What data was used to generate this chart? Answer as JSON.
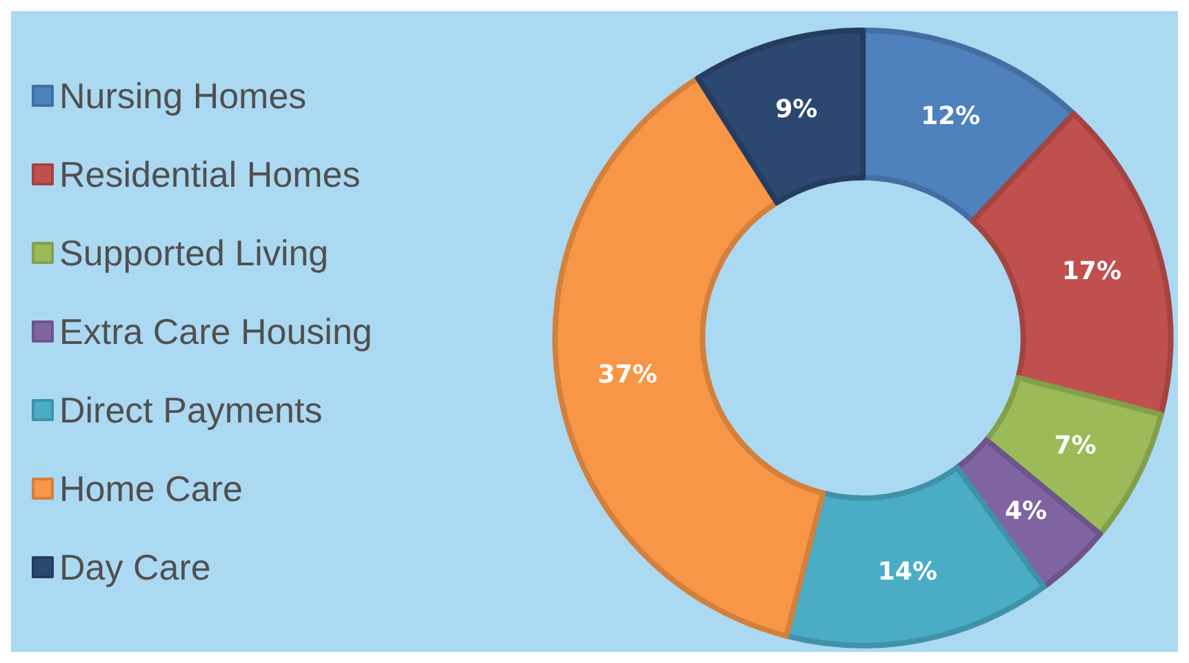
{
  "chart_data": {
    "type": "donut",
    "categories": [
      "Nursing Homes",
      "Residential Homes",
      "Supported Living",
      "Extra Care Housing",
      "Direct Payments",
      "Home Care",
      "Day Care"
    ],
    "values": [
      12,
      17,
      7,
      4,
      14,
      37,
      9
    ],
    "colors": [
      "#4f81bd",
      "#c0504d",
      "#9bbb59",
      "#8064a2",
      "#4bacc6",
      "#f79646",
      "#2c4770"
    ],
    "value_labels": [
      "12%",
      "17%",
      "7%",
      "4%",
      "14%",
      "37%",
      "9%"
    ],
    "legend": "left"
  }
}
